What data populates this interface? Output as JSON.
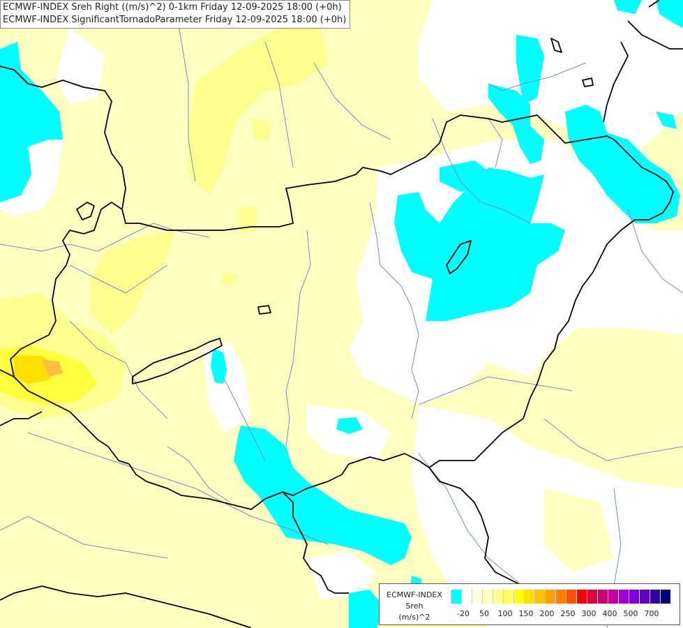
{
  "title": {
    "line1": "ECMWF-INDEX Sreh Right ((m/s)^2) 0-1km Friday 12-09-2025 18:00 (+0h)",
    "line2": "ECMWF-INDEX SignificantTornadoParameter Friday 12-09-2025 18:00 (+0h)"
  },
  "legend": {
    "model": "ECMWF-INDEX",
    "parameter": "Sreh",
    "unit": "(m/s)^2",
    "colors": [
      "#00ffff",
      "#ffffff",
      "#ffffe0",
      "#ffffc0",
      "#ffff90",
      "#ffff60",
      "#ffff00",
      "#ffe000",
      "#ffc000",
      "#ffa000",
      "#ff8000",
      "#ff5000",
      "#ff0000",
      "#e00040",
      "#d00070",
      "#c000a0",
      "#a000d0",
      "#8000e0",
      "#6000c0",
      "#3000a0",
      "#000080"
    ],
    "tick_labels": [
      "-20",
      "50",
      "100",
      "150",
      "200",
      "250",
      "300",
      "400",
      "500",
      "700"
    ]
  },
  "colors": {
    "cyan": "#00ffff",
    "pale_yellow": "#ffffc0",
    "light_yellow": "#ffff90",
    "yellow": "#ffff00",
    "orange_yellow": "#ffd040",
    "border": "#000000",
    "river": "#7090c0"
  }
}
